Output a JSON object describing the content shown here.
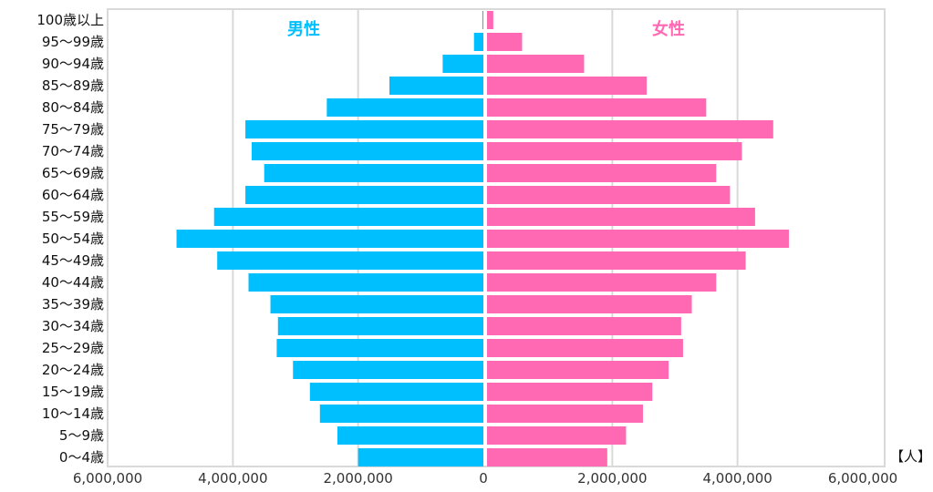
{
  "chart_data": {
    "type": "bar",
    "orientation": "horizontal",
    "layout": "population-pyramid",
    "categories": [
      "100歳以上",
      "95～99歳",
      "90～94歳",
      "85～89歳",
      "80～84歳",
      "75～79歳",
      "70～74歳",
      "65～69歳",
      "60～64歳",
      "55～59歳",
      "50～54歳",
      "45～49歳",
      "40～44歳",
      "35～39歳",
      "30～34歳",
      "25～29歳",
      "20～24歳",
      "15～19歳",
      "10～14歳",
      "5～9歳",
      "0～4歳"
    ],
    "series": [
      {
        "name": "男性",
        "side": "left",
        "color": "#00BFFF",
        "values": [
          15000,
          150000,
          650000,
          1500000,
          2500000,
          3800000,
          3700000,
          3500000,
          3800000,
          4300000,
          4900000,
          4250000,
          3750000,
          3400000,
          3280000,
          3300000,
          3040000,
          2770000,
          2610000,
          2330000,
          2000000
        ]
      },
      {
        "name": "女性",
        "side": "right",
        "color": "#FF69B4",
        "values": [
          100000,
          560000,
          1550000,
          2550000,
          3500000,
          4570000,
          4070000,
          3660000,
          3880000,
          4280000,
          4820000,
          4130000,
          3660000,
          3270000,
          3100000,
          3130000,
          2900000,
          2640000,
          2490000,
          2220000,
          1920000
        ]
      }
    ],
    "xaxis": {
      "ticks": [
        "6,000,000",
        "4,000,000",
        "2,000,000",
        "0",
        "2,000,000",
        "4,000,000",
        "6,000,000"
      ],
      "tick_values": [
        -6000000,
        -4000000,
        -2000000,
        0,
        2000000,
        4000000,
        6000000
      ],
      "range": [
        -6000000,
        6000000
      ]
    },
    "unit": "【人】",
    "grid": true,
    "colors": {
      "male": "#00BFFF",
      "female": "#FF69B4",
      "grid": "#D9D9D9",
      "frame": "#D9D9D9"
    }
  }
}
